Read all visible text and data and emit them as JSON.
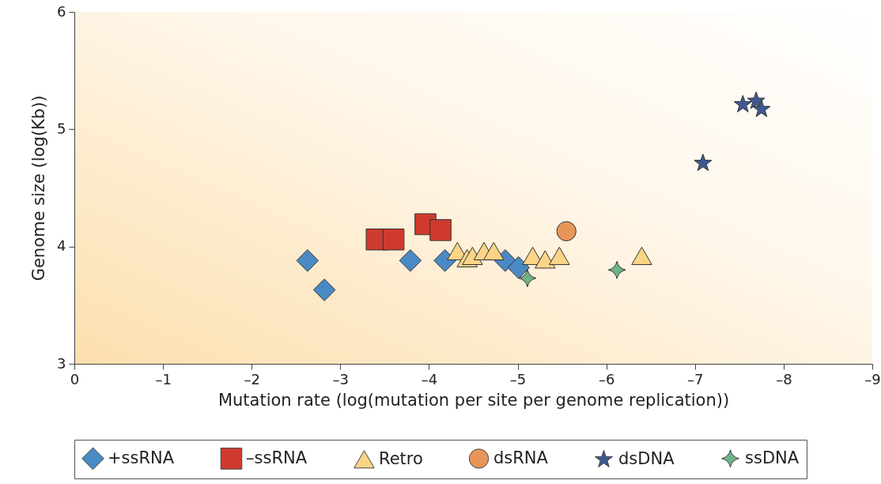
{
  "chart_data": {
    "type": "scatter",
    "xlabel": "Mutation rate (log(mutation per site per genome replication))",
    "ylabel": "Genome size (log(Kb))",
    "xlim": [
      0,
      -9
    ],
    "xticks": [
      0,
      {
        "value": -1,
        "label": "–1"
      },
      {
        "value": -2,
        "label": "–2"
      },
      {
        "value": -3,
        "label": "–3"
      },
      {
        "value": -4,
        "label": "–4"
      },
      {
        "value": -5,
        "label": "–5"
      },
      {
        "value": -6,
        "label": "–6"
      },
      {
        "value": -7,
        "label": "–7"
      },
      {
        "value": -8,
        "label": "–8"
      },
      {
        "value": -9,
        "label": "–9"
      }
    ],
    "ylim": [
      3,
      6
    ],
    "yticks": [
      3,
      4,
      5,
      6
    ],
    "grid": false,
    "legend": "bottom",
    "series": [
      {
        "name": "+ssRNA",
        "color": "#4a8ac4",
        "marker": "diamond",
        "x": [
          -2.63,
          -2.82,
          -3.79,
          -4.18,
          -4.86,
          -5.01
        ],
        "values": [
          3.88,
          3.63,
          3.88,
          3.88,
          3.88,
          3.82
        ]
      },
      {
        "name": "–ssRNA",
        "color": "#d03a2e",
        "marker": "square",
        "x": [
          -3.41,
          -3.6,
          -3.96,
          -4.13
        ],
        "values": [
          4.06,
          4.06,
          4.19,
          4.14
        ]
      },
      {
        "name": "Retro",
        "color": "#fcd488",
        "marker": "triangle",
        "x": [
          -4.32,
          -4.43,
          -4.49,
          -4.62,
          -4.73,
          -5.17,
          -5.31,
          -5.47,
          -6.4
        ],
        "values": [
          3.96,
          3.9,
          3.92,
          3.96,
          3.96,
          3.92,
          3.89,
          3.92,
          3.92
        ]
      },
      {
        "name": "dsRNA",
        "color": "#e8955a",
        "marker": "circle",
        "x": [
          -5.55
        ],
        "values": [
          4.13
        ]
      },
      {
        "name": "dsDNA",
        "color": "#3f5a92",
        "marker": "star",
        "x": [
          -7.09,
          -7.54,
          -7.69,
          -7.75
        ],
        "values": [
          4.71,
          5.21,
          5.24,
          5.17
        ]
      },
      {
        "name": "ssDNA",
        "color": "#6fb38a",
        "marker": "cross",
        "x": [
          -5.11,
          -6.12
        ],
        "values": [
          3.73,
          3.8
        ]
      }
    ]
  }
}
